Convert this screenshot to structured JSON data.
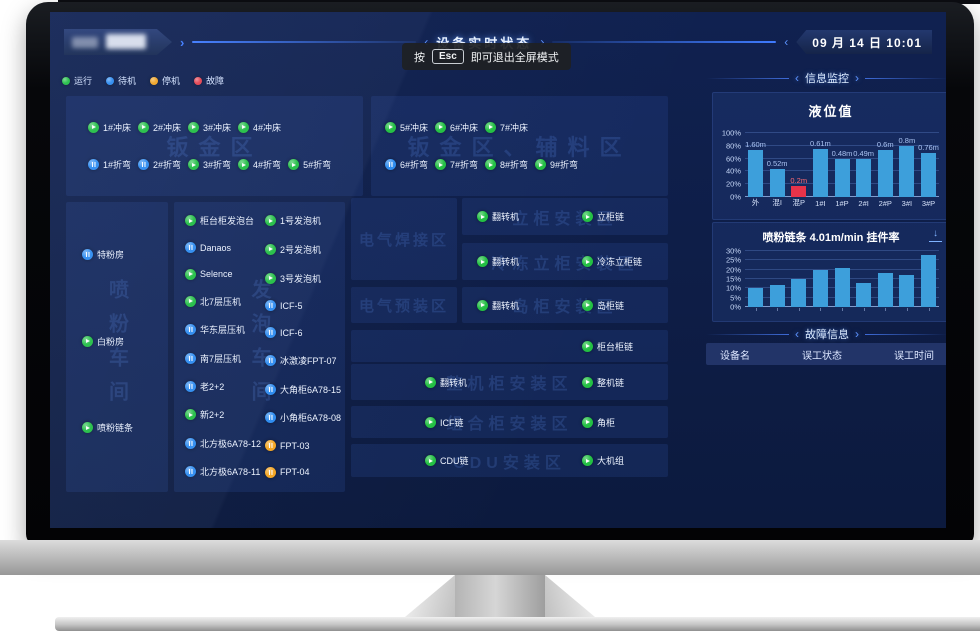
{
  "chevrons": {
    "left": "‹",
    "right": "›"
  },
  "header": {
    "title": "设备实时状态",
    "datetime": "09 月 14 日 10:01"
  },
  "toast": {
    "prefix": "按",
    "key": "Esc",
    "suffix": "即可退出全屏模式"
  },
  "legend": [
    {
      "label": "运行",
      "status": "run"
    },
    {
      "label": "待机",
      "status": "standby"
    },
    {
      "label": "停机",
      "status": "stop"
    },
    {
      "label": "故障",
      "status": "fault"
    }
  ],
  "colors": {
    "run": "#23c043",
    "standby": "#2e8cf0",
    "stop": "#f5a623",
    "fault": "#e8434e",
    "bar": "#3d9fdb",
    "bar_alert": "#e8334a"
  },
  "zones": {
    "banjin": {
      "watermark": "钣金区",
      "row1": [
        {
          "label": "1#冲床",
          "status": "run"
        },
        {
          "label": "2#冲床",
          "status": "run"
        },
        {
          "label": "3#冲床",
          "status": "run"
        },
        {
          "label": "4#冲床",
          "status": "run"
        }
      ],
      "row2": [
        {
          "label": "1#折弯",
          "status": "standby"
        },
        {
          "label": "2#折弯",
          "status": "standby"
        },
        {
          "label": "3#折弯",
          "status": "run"
        },
        {
          "label": "4#折弯",
          "status": "run"
        },
        {
          "label": "5#折弯",
          "status": "run"
        }
      ]
    },
    "fuliao": {
      "watermark": "钣金区、辅料区",
      "row1": [
        {
          "label": "5#冲床",
          "status": "run"
        },
        {
          "label": "6#冲床",
          "status": "run"
        },
        {
          "label": "7#冲床",
          "status": "run"
        }
      ],
      "row2": [
        {
          "label": "6#折弯",
          "status": "standby"
        },
        {
          "label": "7#折弯",
          "status": "run"
        },
        {
          "label": "8#折弯",
          "status": "run"
        },
        {
          "label": "9#折弯",
          "status": "run"
        }
      ]
    },
    "penfen": {
      "watermark": "喷粉车间",
      "items": [
        {
          "label": "特粉房",
          "status": "standby"
        },
        {
          "label": "白粉房",
          "status": "run"
        },
        {
          "label": "喷粉链条",
          "status": "run"
        }
      ]
    },
    "fapao": {
      "watermark": "发泡车间",
      "col1": [
        {
          "label": "柜台柜发泡台",
          "status": "run"
        },
        {
          "label": "Danaos",
          "status": "standby"
        },
        {
          "label": "Selence",
          "status": "run"
        },
        {
          "label": "北7层压机",
          "status": "run"
        },
        {
          "label": "华东层压机",
          "status": "standby"
        },
        {
          "label": "南7层压机",
          "status": "standby"
        },
        {
          "label": "老2+2",
          "status": "standby"
        },
        {
          "label": "新2+2",
          "status": "run"
        },
        {
          "label": "北方极6A78-12",
          "status": "standby"
        },
        {
          "label": "北方极6A78-11",
          "status": "standby"
        }
      ],
      "col2": [
        {
          "label": "1号发泡机",
          "status": "run"
        },
        {
          "label": "2号发泡机",
          "status": "run"
        },
        {
          "label": "3号发泡机",
          "status": "run"
        },
        {
          "label": "ICF-5",
          "status": "standby"
        },
        {
          "label": "ICF-6",
          "status": "standby"
        },
        {
          "label": "冰激凌FPT-07",
          "status": "standby"
        },
        {
          "label": "大角柜6A78-15",
          "status": "standby"
        },
        {
          "label": "小角柜6A78-08",
          "status": "standby"
        },
        {
          "label": "FPT-03",
          "status": "stop"
        },
        {
          "label": "FPT-04",
          "status": "stop"
        }
      ]
    },
    "hanjie": {
      "watermark": "电气焊接区"
    },
    "yuzhuang": {
      "watermark": "电气预装区"
    },
    "ligui": {
      "watermark": "立柜安装区",
      "left": [
        {
          "label": "翻转机",
          "status": "run"
        }
      ],
      "right": [
        {
          "label": "立柜链",
          "status": "run"
        }
      ]
    },
    "lengdong": {
      "watermark": "冷冻立柜安装区",
      "left": [
        {
          "label": "翻转机",
          "status": "run"
        }
      ],
      "right": [
        {
          "label": "冷冻立柜链",
          "status": "run"
        }
      ]
    },
    "daogui": {
      "watermark": "岛柜安装区",
      "left": [
        {
          "label": "翻转机",
          "status": "run"
        }
      ],
      "right": [
        {
          "label": "岛柜链",
          "status": "run"
        }
      ]
    },
    "guitai": {
      "watermark": "",
      "left": [],
      "right": [
        {
          "label": "柜台柜链",
          "status": "run"
        }
      ]
    },
    "zhengji": {
      "watermark": "整机柜安装区",
      "left": [
        {
          "label": "翻转机",
          "status": "run"
        }
      ],
      "right": [
        {
          "label": "整机链",
          "status": "run"
        }
      ]
    },
    "zuhe": {
      "watermark": "组合柜安装区",
      "left": [
        {
          "label": "ICF链",
          "status": "run"
        }
      ],
      "right": [
        {
          "label": "角柜",
          "status": "run"
        }
      ]
    },
    "cdu": {
      "watermark": "CDU安装区",
      "left": [
        {
          "label": "CDU链",
          "status": "run"
        }
      ],
      "right": [
        {
          "label": "大机组",
          "status": "run"
        }
      ]
    }
  },
  "info_panel": {
    "section_title": "信息监控",
    "level_chart": {
      "title": "液位值",
      "ymax": 100,
      "ystep": 20,
      "bars": [
        {
          "x": "外",
          "pct": 73,
          "value": "1.60m"
        },
        {
          "x": "混I",
          "pct": 43,
          "value": "0.52m"
        },
        {
          "x": "混P",
          "pct": 17,
          "value": "0.2m",
          "alert": true
        },
        {
          "x": "1#I",
          "pct": 75,
          "value": "0.61m"
        },
        {
          "x": "1#P",
          "pct": 59,
          "value": "0.48m"
        },
        {
          "x": "2#I",
          "pct": 60,
          "value": "0.49m"
        },
        {
          "x": "2#P",
          "pct": 74,
          "value": "0.6m"
        },
        {
          "x": "3#I",
          "pct": 79,
          "value": "0.8m"
        },
        {
          "x": "3#P",
          "pct": 68,
          "value": "0.76m"
        }
      ]
    },
    "chain_chart": {
      "title": "喷粉链条 4.01m/min 挂件率",
      "ymax": 30,
      "ystep": 5,
      "bars": [
        {
          "pct": 10
        },
        {
          "pct": 12
        },
        {
          "pct": 15
        },
        {
          "pct": 20
        },
        {
          "pct": 21
        },
        {
          "pct": 13
        },
        {
          "pct": 18
        },
        {
          "pct": 17
        },
        {
          "pct": 28
        }
      ]
    },
    "fault_section_title": "故障信息",
    "fault_table": {
      "headers": [
        "设备名",
        "误工状态",
        "误工时间"
      ],
      "rows": []
    }
  },
  "chart_data": [
    {
      "type": "bar",
      "title": "液位值",
      "categories": [
        "外",
        "混I",
        "混P",
        "1#I",
        "1#P",
        "2#I",
        "2#P",
        "3#I",
        "3#P"
      ],
      "values_percent": [
        73,
        43,
        17,
        75,
        59,
        60,
        74,
        79,
        68
      ],
      "data_labels": [
        "1.60m",
        "0.52m",
        "0.2m",
        "0.61m",
        "0.48m",
        "0.49m",
        "0.6m",
        "0.8m",
        "0.76m"
      ],
      "ylim": [
        0,
        100
      ],
      "ytick_step": 20,
      "grid": true,
      "alert_index": 2
    },
    {
      "type": "bar",
      "title": "喷粉链条 4.01m/min 挂件率",
      "values_percent": [
        10,
        12,
        15,
        20,
        21,
        13,
        18,
        17,
        28
      ],
      "ylim": [
        0,
        30
      ],
      "ytick_step": 5,
      "grid": true
    }
  ]
}
